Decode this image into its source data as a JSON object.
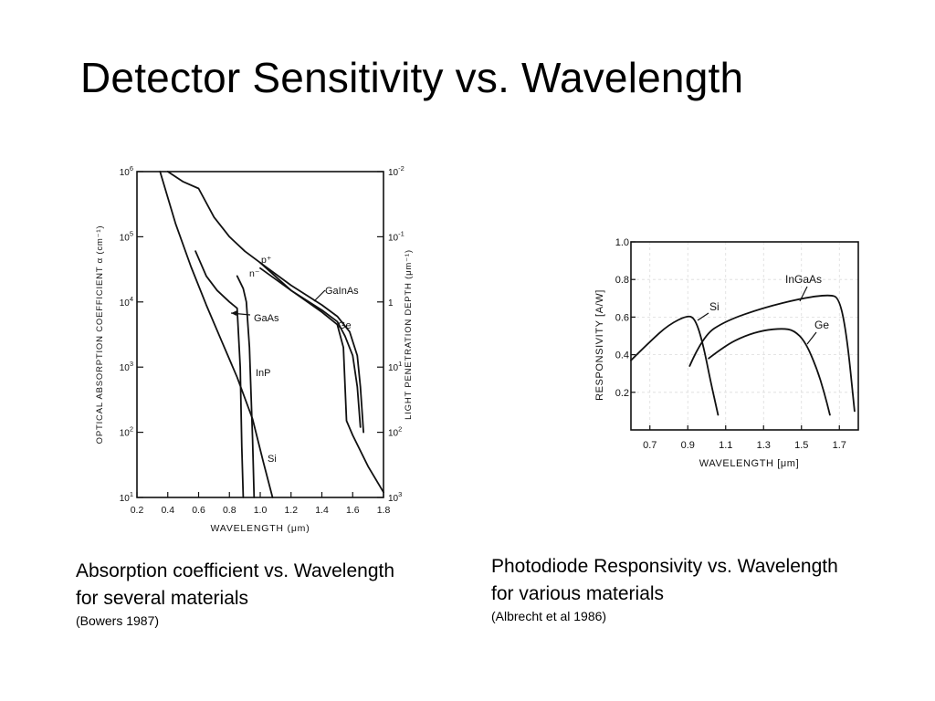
{
  "slide": {
    "title": "Detector Sensitivity vs. Wavelength"
  },
  "captions": {
    "left": {
      "line1": "Absorption coefficient vs. Wavelength",
      "line2": "for several materials",
      "source": "(Bowers 1987)"
    },
    "right": {
      "line1": "Photodiode Responsivity vs. Wavelength",
      "line2": "for various materials",
      "source": "(Albrecht et al 1986)"
    }
  },
  "chart_data": [
    {
      "type": "line",
      "xlabel": "WAVELENGTH (μm)",
      "ylabel": "OPTICAL ABSORPTION COEFFICIENT α (cm⁻¹)",
      "y2label": "LIGHT PENETRATION DEPTH (μm⁻¹)",
      "xlim": [
        0.2,
        1.8
      ],
      "ylim": [
        10,
        1000000
      ],
      "yscale": "log",
      "x_ticks": [
        "0.2",
        "0.4",
        "0.6",
        "0.8",
        "1.0",
        "1.2",
        "1.4",
        "1.6",
        "1.8"
      ],
      "y_ticks": [
        {
          "base": "10",
          "exp": "1"
        },
        {
          "base": "10",
          "exp": "2"
        },
        {
          "base": "10",
          "exp": "3"
        },
        {
          "base": "10",
          "exp": "4"
        },
        {
          "base": "10",
          "exp": "5"
        },
        {
          "base": "10",
          "exp": "6"
        }
      ],
      "y2_ticks": [
        {
          "base": "10",
          "exp": "3",
          "at": 10
        },
        {
          "base": "10",
          "exp": "2",
          "at": 100
        },
        {
          "base": "10",
          "exp": "1",
          "at": 1000
        },
        {
          "base": "1",
          "exp": "",
          "at": 10000
        },
        {
          "base": "10",
          "exp": "-1",
          "at": 100000
        },
        {
          "base": "10",
          "exp": "-2",
          "at": 1000000
        }
      ],
      "grid": false,
      "series": [
        {
          "name": "Si",
          "x": [
            0.35,
            0.45,
            0.55,
            0.65,
            0.75,
            0.85,
            0.95,
            1.02,
            1.08
          ],
          "y": [
            1000000,
            160000,
            35000,
            9000,
            2500,
            700,
            160,
            35,
            10
          ]
        },
        {
          "name": "GaAs",
          "x": [
            0.58,
            0.65,
            0.72,
            0.8,
            0.85,
            0.87,
            0.88,
            0.89
          ],
          "y": [
            60000,
            25000,
            15000,
            10000,
            8000,
            1000,
            60,
            10
          ]
        },
        {
          "name": "InP",
          "x": [
            0.85,
            0.87,
            0.89,
            0.91,
            0.93,
            0.95,
            0.96
          ],
          "y": [
            25000,
            20000,
            16000,
            10000,
            2000,
            80,
            10
          ]
        },
        {
          "name": "Ge",
          "x": [
            0.4,
            0.5,
            0.6,
            0.7,
            0.8,
            0.9,
            1.0,
            1.2,
            1.4,
            1.5,
            1.54,
            1.56,
            1.6,
            1.7,
            1.8
          ],
          "y": [
            1000000,
            700000,
            550000,
            200000,
            100000,
            60000,
            40000,
            15000,
            7000,
            4500,
            2000,
            150,
            90,
            30,
            12
          ]
        },
        {
          "name": "GaInAs",
          "labels": [
            "p⁺",
            "n⁻"
          ],
          "x": [
            1.0,
            1.2,
            1.4,
            1.5,
            1.58,
            1.63,
            1.65,
            1.67
          ],
          "y": [
            40000,
            18000,
            9000,
            6000,
            3500,
            1500,
            500,
            100
          ]
        },
        {
          "name": "",
          "x": [
            1.0,
            1.2,
            1.4,
            1.5,
            1.55,
            1.6,
            1.63,
            1.65
          ],
          "y": [
            33000,
            15000,
            7500,
            5000,
            3000,
            1500,
            500,
            120
          ]
        }
      ]
    },
    {
      "type": "line",
      "xlabel": "WAVELENGTH [μm]",
      "ylabel": "RESPONSIVITY [A/W]",
      "xlim": [
        0.6,
        1.8
      ],
      "ylim": [
        0,
        1.0
      ],
      "x_ticks": [
        "0.7",
        "0.9",
        "1.1",
        "1.3",
        "1.5",
        "1.7"
      ],
      "y_ticks": [
        "0.2",
        "0.4",
        "0.6",
        "0.8",
        "1.0"
      ],
      "grid": true,
      "series": [
        {
          "name": "Si",
          "x": [
            0.6,
            0.7,
            0.8,
            0.9,
            0.94,
            0.98,
            1.02,
            1.06
          ],
          "y": [
            0.37,
            0.47,
            0.56,
            0.61,
            0.59,
            0.46,
            0.26,
            0.08
          ]
        },
        {
          "name": "InGaAs",
          "x": [
            0.91,
            0.98,
            1.1,
            1.3,
            1.5,
            1.65,
            1.7,
            1.74,
            1.78
          ],
          "y": [
            0.34,
            0.5,
            0.58,
            0.65,
            0.7,
            0.72,
            0.7,
            0.5,
            0.1
          ]
        },
        {
          "name": "Ge",
          "x": [
            1.01,
            1.1,
            1.2,
            1.3,
            1.4,
            1.46,
            1.52,
            1.58,
            1.62,
            1.65
          ],
          "y": [
            0.38,
            0.45,
            0.5,
            0.53,
            0.54,
            0.53,
            0.47,
            0.33,
            0.2,
            0.08
          ]
        }
      ]
    }
  ]
}
